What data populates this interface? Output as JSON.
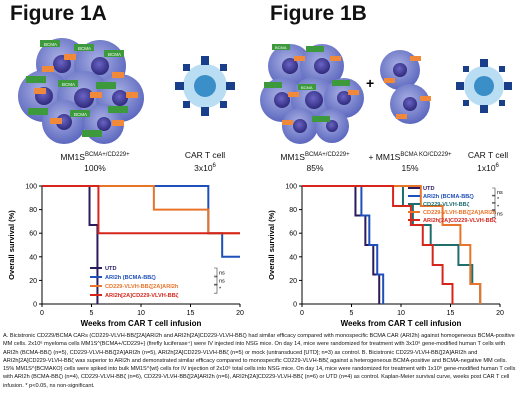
{
  "figure_a": {
    "title": "Figure 1A",
    "left_label": "MM1S",
    "left_label_sup": "BCMA+/CD229+",
    "left_value": "100%",
    "right_label": "CAR T cell",
    "right_value": "3x10",
    "right_value_sup": "6",
    "antigen_tag": "BCMA"
  },
  "figure_b": {
    "title": "Figure 1B",
    "plus": "+",
    "left_label": "MM1S",
    "left_label_sup": "BCMA+/CD229+",
    "left_value": "85%",
    "mid_label": "+ MM1S",
    "mid_label_sup": "BCMA KO/CD229+",
    "mid_value": "15%",
    "right_label": "CAR T cell",
    "right_value": "1x10",
    "right_value_sup": "6",
    "antigen_tag": "BCMA"
  },
  "caption": "A. Bicistronic CD229/BCMA CARs (CD229-VLVH-BBζ[2A]ARI2h and ARI2h[2A]CD229-VLVH-BBζ) had similar efficacy compared with monospecific BCMA CAR (ARI2h) against homogeneous BCMA-positive MM cells. 2x10⁶ myeloma cells MM1S^{BCMA+/CD229+} (firefly luciferase⁺) were IV injected into NSG mice. On day 14, mice were randomized for treatment with 3x10⁶ gene-modified human T cells with ARI2h (BCMA-BBζ) (n=5), CD229-VLVH-BBζ[2A]ARI2h (n=5), ARI2h[2A]CD229-VLVH-BBζ (n=5) or mock (untransduced [UTD]; n=3) as control. B. Bicistronic CD229-VLVH-BBζ[2A]ARI2h and ARI2h[2A]CD229-VLVH-BBζ was superior to ARI2h and demonstrated similar efficacy compared to monospecific CD229-VLVH-BBζ against a heterogeneous BCMA-positive and BCMA-negative MM cells. 15% MM1S^{BCMAKO} cells were spiked into bulk MM1S^{wt} cells for IV injection of 2x10⁶ total cells into NSG mice. On day 14, mice were randomized for treatment with 1x10⁶ gene-modified human T cells with ARI2h (BCMA-BBζ) (n=4), CD229-VLVH-BBζ (n=6), CD229-VLVH-BBζ[2A]ARI2h (n=6), ARI2h[2A]CD229-VLVH-BBζ (n=6) or UTD (n=4) as control. Kaplan-Meier survival curve, weeks post CAR T cell infusion. * p<0.05, ns non-significant.",
  "chart_data": [
    {
      "type": "line",
      "subtype": "kaplan-meier",
      "xlabel": "Weeks from CAR T cell infusion",
      "ylabel": "Overall survival (%)",
      "xlim": [
        0,
        20
      ],
      "ylim": [
        0,
        100
      ],
      "xticks": [
        0,
        5,
        10,
        15,
        20
      ],
      "yticks": [
        0,
        20,
        40,
        60,
        80,
        100
      ],
      "legend": "bottom-left",
      "significance": [
        "ns",
        "ns",
        "*"
      ],
      "series": [
        {
          "name": "UTD",
          "color": "#2b1b5e",
          "x": [
            0,
            4.8,
            5.6
          ],
          "y": [
            100,
            67,
            0
          ]
        },
        {
          "name": "ARI2h (BCMA-BBζ)",
          "color": "#1f4fb8",
          "x": [
            0,
            16.8,
            18.2,
            20
          ],
          "y": [
            100,
            60,
            40,
            40
          ]
        },
        {
          "name": "CD229-VLVH-BBζ[2A]ARI2h",
          "color": "#e8742a",
          "x": [
            0,
            11.3,
            16.8,
            20
          ],
          "y": [
            100,
            80,
            60,
            60
          ]
        },
        {
          "name": "ARI2h[2A]CD229-VLVH-BBζ",
          "color": "#d6261c",
          "x": [
            0,
            5.7,
            17.3,
            20
          ],
          "y": [
            100,
            60,
            60,
            60
          ]
        }
      ]
    },
    {
      "type": "line",
      "subtype": "kaplan-meier",
      "xlabel": "Weeks from CAR T cell infusion",
      "ylabel": "Overall survival (%)",
      "xlim": [
        0,
        20
      ],
      "ylim": [
        0,
        100
      ],
      "xticks": [
        0,
        5,
        10,
        15,
        20
      ],
      "yticks": [
        0,
        20,
        40,
        60,
        80,
        100
      ],
      "legend": "top-right",
      "significance": [
        "ns",
        "*",
        "*",
        "ns"
      ],
      "series": [
        {
          "name": "UTD",
          "color": "#2b1b5e",
          "x": [
            0,
            5.4,
            6.4,
            7.2,
            7.8
          ],
          "y": [
            100,
            75,
            50,
            25,
            0
          ]
        },
        {
          "name": "ARI2h (BCMA-BBζ)",
          "color": "#1f4fb8",
          "x": [
            0,
            6.0,
            6.8,
            7.6,
            8.2
          ],
          "y": [
            100,
            75,
            50,
            25,
            0
          ]
        },
        {
          "name": "CD229-VLVH-BBζ",
          "color": "#1f6e6e",
          "x": [
            0,
            10.2,
            11.2,
            13.0,
            15.8,
            17.2,
            18.0
          ],
          "y": [
            100,
            83,
            67,
            50,
            33,
            17,
            0
          ]
        },
        {
          "name": "CD229-VLVH-BBζ[2A]ARI2h",
          "color": "#e8742a",
          "x": [
            0,
            12.0,
            14.2,
            16.0,
            17.0,
            18.0
          ],
          "y": [
            100,
            83,
            67,
            50,
            17,
            0
          ]
        },
        {
          "name": "ARI2h[2A]CD229-VLVH-BBζ",
          "color": "#d6261c",
          "x": [
            0,
            9.2,
            11.0,
            12.2,
            13.2,
            14.2,
            15.2
          ],
          "y": [
            100,
            83,
            67,
            50,
            33,
            17,
            0
          ]
        }
      ]
    }
  ]
}
